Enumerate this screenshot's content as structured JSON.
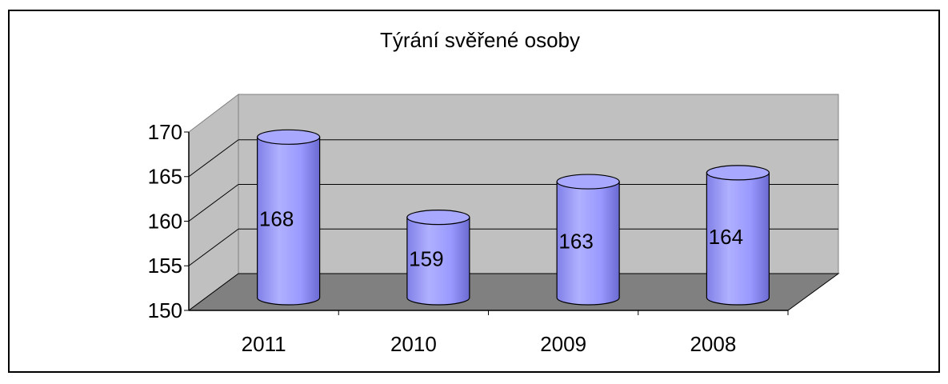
{
  "chart_data": {
    "type": "bar",
    "title": "Týrání svěřené osoby",
    "categories": [
      "2011",
      "2010",
      "2009",
      "2008"
    ],
    "values": [
      168,
      159,
      163,
      164
    ],
    "color": "#9999ff",
    "ylim": [
      150,
      170
    ],
    "yticks": [
      150,
      155,
      160,
      165,
      170
    ],
    "grid": true
  }
}
